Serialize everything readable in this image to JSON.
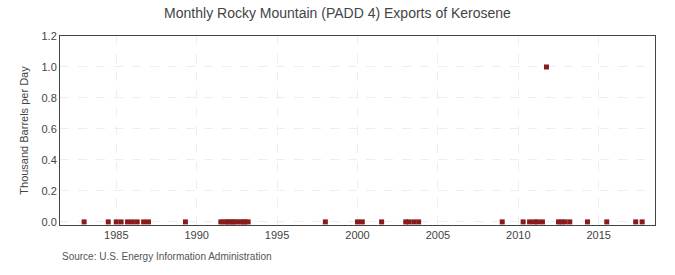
{
  "chart_data": {
    "type": "scatter",
    "title": "Monthly Rocky Mountain (PADD 4) Exports of Kerosene",
    "ylabel": "Thousand Barrels per Day",
    "annotations": [
      "Source: U.S. Energy Information Administration"
    ],
    "color": "#8b1a1a",
    "marker": "square",
    "grid": true,
    "xlim": [
      1981.5,
      2018.5
    ],
    "ylim": [
      -0.02,
      1.2
    ],
    "xticks": [
      1985,
      1990,
      1995,
      2000,
      2005,
      2010,
      2015
    ],
    "yticks": [
      {
        "value": 0.0,
        "label": "0.0"
      },
      0.2,
      0.4,
      0.6,
      0.8,
      {
        "value": 1.0,
        "label": "1.0"
      },
      1.2
    ],
    "x": [
      1983.0,
      1984.5,
      1985.0,
      1985.3,
      1985.7,
      1986.0,
      1986.3,
      1986.7,
      1987.0,
      1989.3,
      1991.5,
      1991.7,
      1991.9,
      1992.0,
      1992.2,
      1992.3,
      1992.5,
      1992.7,
      1992.9,
      1993.0,
      1993.2,
      1998.0,
      2000.0,
      2000.3,
      2001.5,
      2003.0,
      2003.2,
      2003.5,
      2003.8,
      2009.0,
      2010.3,
      2010.7,
      2011.0,
      2011.2,
      2011.5,
      2011.75,
      2012.5,
      2012.7,
      2012.9,
      2013.2,
      2014.3,
      2015.5,
      2017.3,
      2017.7
    ],
    "values": [
      0.0,
      0.0,
      0.0,
      0.0,
      0.0,
      0.0,
      0.0,
      0.0,
      0.0,
      0.0,
      0.0,
      0.0,
      0.0,
      0.0,
      0.0,
      0.0,
      0.0,
      0.0,
      0.0,
      0.0,
      0.0,
      0.0,
      0.0,
      0.0,
      0.0,
      0.0,
      0.0,
      0.0,
      0.0,
      0.0,
      0.0,
      0.0,
      0.0,
      0.0,
      0.0,
      1.0,
      0.0,
      0.0,
      0.0,
      0.0,
      0.0,
      0.0,
      0.0,
      0.0
    ]
  }
}
